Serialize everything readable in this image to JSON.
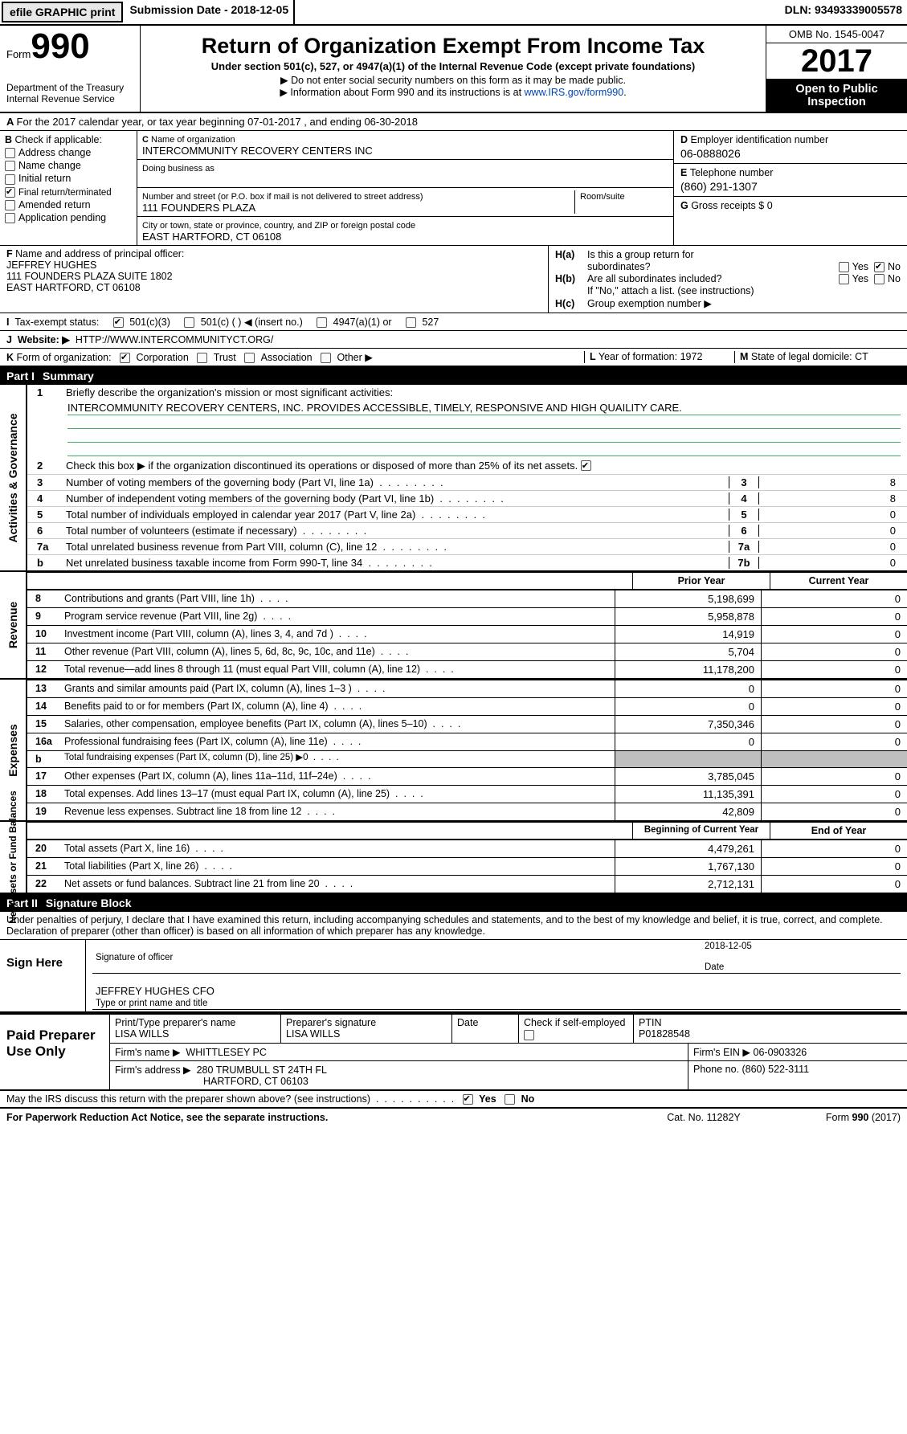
{
  "bar": {
    "efile": "efile GRAPHIC print",
    "sub_lbl": "Submission Date",
    "sub_val": "2018-12-05",
    "dln_lbl": "DLN:",
    "dln_val": "93493339005578"
  },
  "hdr": {
    "form_lbl": "Form",
    "form_num": "990",
    "dept1": "Department of the Treasury",
    "dept2": "Internal Revenue Service",
    "title": "Return of Organization Exempt From Income Tax",
    "sub": "Under section 501(c), 527, or 4947(a)(1) of the Internal Revenue Code (except private foundations)",
    "note1": "▶ Do not enter social security numbers on this form as it may be made public.",
    "note2": "▶ Information about Form 990 and its instructions is at ",
    "link": "www.IRS.gov/form990",
    "omb": "OMB No. 1545-0047",
    "year": "2017",
    "insp": "Open to Public Inspection"
  },
  "A": {
    "text": "For the 2017 calendar year, or tax year beginning 07-01-2017   , and ending 06-30-2018"
  },
  "B": {
    "title": "Check if applicable:",
    "items": [
      "Address change",
      "Name change",
      "Initial return",
      "Final return/terminated",
      "Amended return",
      "Application pending"
    ],
    "checked": [
      false,
      false,
      false,
      true,
      false,
      false
    ]
  },
  "C": {
    "name_lbl": "Name of organization",
    "name": "INTERCOMMUNITY RECOVERY CENTERS INC",
    "dba_lbl": "Doing business as",
    "dba": "",
    "street_lbl": "Number and street (or P.O. box if mail is not delivered to street address)",
    "room_lbl": "Room/suite",
    "street": "111 FOUNDERS PLAZA",
    "city_lbl": "City or town, state or province, country, and ZIP or foreign postal code",
    "city": "EAST HARTFORD, CT  06108"
  },
  "D": {
    "lbl": "Employer identification number",
    "val": "06-0888026"
  },
  "E": {
    "lbl": "Telephone number",
    "val": "(860) 291-1307"
  },
  "G": {
    "lbl": "Gross receipts $",
    "val": "0"
  },
  "F": {
    "lbl": "Name and address of principal officer:",
    "l1": "JEFFREY HUGHES",
    "l2": "111 FOUNDERS PLAZA SUITE 1802",
    "l3": "EAST HARTFORD, CT  06108"
  },
  "H": {
    "a_lbl": "Is this a group return for",
    "a_lbl2": "subordinates?",
    "a_yes": "Yes",
    "a_no": "No",
    "a_val": "No",
    "b_lbl": "Are all subordinates included?",
    "b_yes": "Yes",
    "b_no": "No",
    "note": "If \"No,\" attach a list. (see instructions)",
    "c_lbl": "Group exemption number ▶"
  },
  "I": {
    "lbl": "Tax-exempt status:",
    "opts": [
      "501(c)(3)",
      "501(c) (   ) ◀ (insert no.)",
      "4947(a)(1) or",
      "527"
    ],
    "checked": [
      true,
      false,
      false,
      false
    ]
  },
  "J": {
    "lbl": "Website: ▶",
    "val": "HTTP://WWW.INTERCOMMUNITYCT.ORG/"
  },
  "K": {
    "lbl": "Form of organization:",
    "opts": [
      "Corporation",
      "Trust",
      "Association",
      "Other ▶"
    ],
    "checked": [
      true,
      false,
      false,
      false
    ]
  },
  "L": {
    "lbl": "Year of formation:",
    "val": "1972"
  },
  "M": {
    "lbl": "State of legal domicile:",
    "val": "CT"
  },
  "part1": {
    "title": "Part I",
    "name": "Summary"
  },
  "gov": {
    "q1": "Briefly describe the organization's mission or most significant activities:",
    "mission": "INTERCOMMUNITY RECOVERY CENTERS, INC. PROVIDES ACCESSIBLE, TIMELY, RESPONSIVE AND HIGH QUAILITY CARE.",
    "q2": "Check this box ▶        if the organization discontinued its operations or disposed of more than 25% of its net assets.",
    "rows": [
      {
        "n": "3",
        "t": "Number of voting members of the governing body (Part VI, line 1a)",
        "c": "3",
        "v": "8"
      },
      {
        "n": "4",
        "t": "Number of independent voting members of the governing body (Part VI, line 1b)",
        "c": "4",
        "v": "8"
      },
      {
        "n": "5",
        "t": "Total number of individuals employed in calendar year 2017 (Part V, line 2a)",
        "c": "5",
        "v": "0"
      },
      {
        "n": "6",
        "t": "Total number of volunteers (estimate if necessary)",
        "c": "6",
        "v": "0"
      },
      {
        "n": "7a",
        "t": "Total unrelated business revenue from Part VIII, column (C), line 12",
        "c": "7a",
        "v": "0"
      },
      {
        "n": "b",
        "t": "Net unrelated business taxable income from Form 990-T, line 34",
        "c": "7b",
        "v": "0"
      }
    ]
  },
  "cols": {
    "prior": "Prior Year",
    "current": "Current Year",
    "begin": "Beginning of Current Year",
    "end": "End of Year"
  },
  "rev": [
    {
      "n": "8",
      "t": "Contributions and grants (Part VIII, line 1h)",
      "p": "5,198,699",
      "c": "0"
    },
    {
      "n": "9",
      "t": "Program service revenue (Part VIII, line 2g)",
      "p": "5,958,878",
      "c": "0"
    },
    {
      "n": "10",
      "t": "Investment income (Part VIII, column (A), lines 3, 4, and 7d )",
      "p": "14,919",
      "c": "0"
    },
    {
      "n": "11",
      "t": "Other revenue (Part VIII, column (A), lines 5, 6d, 8c, 9c, 10c, and 11e)",
      "p": "5,704",
      "c": "0"
    },
    {
      "n": "12",
      "t": "Total revenue—add lines 8 through 11 (must equal Part VIII, column (A), line 12)",
      "p": "11,178,200",
      "c": "0"
    }
  ],
  "exp": [
    {
      "n": "13",
      "t": "Grants and similar amounts paid (Part IX, column (A), lines 1–3 )",
      "p": "0",
      "c": "0"
    },
    {
      "n": "14",
      "t": "Benefits paid to or for members (Part IX, column (A), line 4)",
      "p": "0",
      "c": "0"
    },
    {
      "n": "15",
      "t": "Salaries, other compensation, employee benefits (Part IX, column (A), lines 5–10)",
      "p": "7,350,346",
      "c": "0"
    },
    {
      "n": "16a",
      "t": "Professional fundraising fees (Part IX, column (A), line 11e)",
      "p": "0",
      "c": "0"
    },
    {
      "n": "b",
      "t": "Total fundraising expenses (Part IX, column (D), line 25) ▶0",
      "p": "",
      "c": "",
      "shade": true,
      "small": true
    },
    {
      "n": "17",
      "t": "Other expenses (Part IX, column (A), lines 11a–11d, 11f–24e)",
      "p": "3,785,045",
      "c": "0"
    },
    {
      "n": "18",
      "t": "Total expenses. Add lines 13–17 (must equal Part IX, column (A), line 25)",
      "p": "11,135,391",
      "c": "0"
    },
    {
      "n": "19",
      "t": "Revenue less expenses. Subtract line 18 from line 12",
      "p": "42,809",
      "c": "0"
    }
  ],
  "net": [
    {
      "n": "20",
      "t": "Total assets (Part X, line 16)",
      "p": "4,479,261",
      "c": "0"
    },
    {
      "n": "21",
      "t": "Total liabilities (Part X, line 26)",
      "p": "1,767,130",
      "c": "0"
    },
    {
      "n": "22",
      "t": "Net assets or fund balances. Subtract line 21 from line 20",
      "p": "2,712,131",
      "c": "0"
    }
  ],
  "vtabs": {
    "gov": "Activities & Governance",
    "rev": "Revenue",
    "exp": "Expenses",
    "net": "Net Assets or\nFund Balances"
  },
  "part2": {
    "title": "Part II",
    "name": "Signature Block",
    "decl": "Under penalties of perjury, I declare that I have examined this return, including accompanying schedules and statements, and to the best of my knowledge and belief, it is true, correct, and complete. Declaration of preparer (other than officer) is based on all information of which preparer has any knowledge."
  },
  "sign": {
    "here": "Sign Here",
    "sig_lbl": "Signature of officer",
    "date_lbl": "Date",
    "date": "2018-12-05",
    "name": "JEFFREY HUGHES CFO",
    "name_lbl": "Type or print name and title"
  },
  "prep": {
    "title": "Paid Preparer Use Only",
    "name_lbl": "Print/Type preparer's name",
    "name": "LISA WILLS",
    "sig_lbl": "Preparer's signature",
    "sig": "LISA WILLS",
    "date_lbl": "Date",
    "check_lbl": "Check        if self-employed",
    "ptin_lbl": "PTIN",
    "ptin": "P01828548",
    "firm_lbl": "Firm's name    ▶",
    "firm": "WHITTLESEY PC",
    "ein_lbl": "Firm's EIN ▶",
    "ein": "06-0903326",
    "addr_lbl": "Firm's address ▶",
    "addr1": "280 TRUMBULL ST 24TH FL",
    "addr2": "HARTFORD, CT  06103",
    "phone_lbl": "Phone no.",
    "phone": "(860) 522-3111"
  },
  "discuss": {
    "q": "May the IRS discuss this return with the preparer shown above? (see instructions)",
    "yes": "Yes",
    "no": "No"
  },
  "foot": {
    "l": "For Paperwork Reduction Act Notice, see the separate instructions.",
    "m": "Cat. No. 11282Y",
    "r": "Form 990 (2017)"
  }
}
